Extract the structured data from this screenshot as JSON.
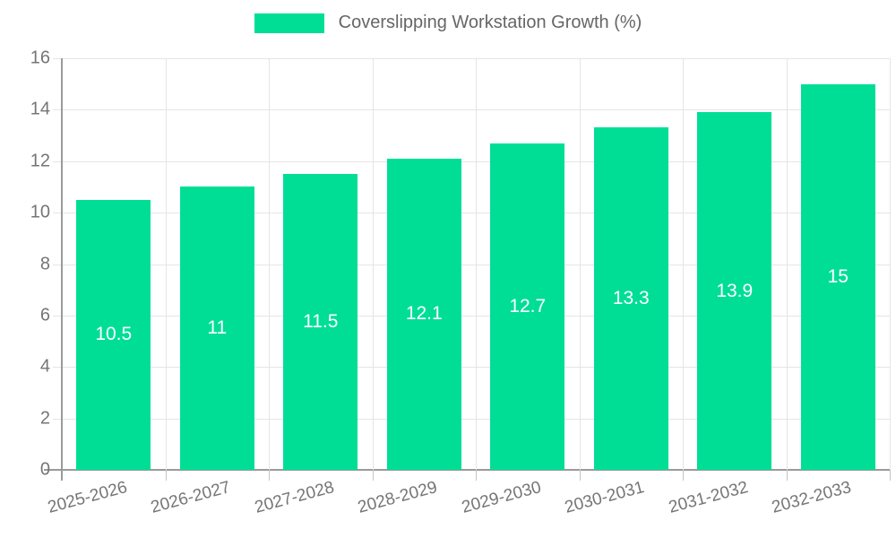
{
  "chart_data": {
    "type": "bar",
    "title": "Coverslipping Workstation Growth (%)",
    "categories": [
      "2025-2026",
      "2026-2027",
      "2027-2028",
      "2028-2029",
      "2029-2030",
      "2030-2031",
      "2031-2032",
      "2032-2033"
    ],
    "values": [
      10.5,
      11,
      11.5,
      12.1,
      12.7,
      13.3,
      13.9,
      15
    ],
    "xlabel": "",
    "ylabel": "",
    "ylim": [
      0,
      16
    ],
    "ytick_step": 2,
    "grid": true,
    "legend_position": "top",
    "value_labels_inside_bars": true,
    "colors": {
      "bar": "#00de96",
      "value_label": "#ffffff",
      "grid": "#e5e5e5",
      "axis": "#9a9a9a",
      "tick_text": "#757575",
      "legend_text": "#666666",
      "background": "#ffffff"
    }
  }
}
